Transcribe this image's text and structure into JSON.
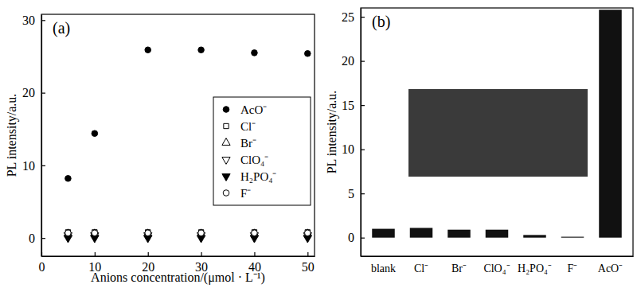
{
  "chart_data": [
    {
      "type": "scatter",
      "annotations": [
        "(a)"
      ],
      "x_label": "Anions concentration/(μmol · L⁻¹)",
      "y_label": "PL intensity/a.u.",
      "x": [
        5,
        10,
        20,
        30,
        40,
        50
      ],
      "series": [
        {
          "name": "AcO⁻",
          "color": "#000000",
          "marker": "circle",
          "values": [
            8.2,
            14.4,
            25.9,
            25.9,
            25.5,
            25.4
          ]
        },
        {
          "name": "Cl⁻",
          "color": "#000000",
          "marker": "square-open",
          "values": [
            0.8,
            0.8,
            0.8,
            0.8,
            0.8,
            0.8
          ]
        },
        {
          "name": "Br⁻",
          "color": "#000000",
          "marker": "triangle-open",
          "values": [
            0.6,
            0.6,
            0.6,
            0.6,
            0.6,
            0.6
          ]
        },
        {
          "name": "ClO₄⁻",
          "color": "#000000",
          "marker": "triangle-down-open",
          "values": [
            0.4,
            0.4,
            0.4,
            0.4,
            0.4,
            0.4
          ]
        },
        {
          "name": "H₂PO₄⁻",
          "color": "#000000",
          "marker": "triangle-down",
          "values": [
            0.0,
            0.0,
            0.0,
            0.0,
            0.0,
            0.0
          ]
        },
        {
          "name": "F⁻",
          "color": "#000000",
          "marker": "circle-open",
          "values": [
            0.7,
            0.7,
            0.7,
            0.7,
            0.7,
            0.7
          ]
        }
      ],
      "xlim": [
        0,
        51.3
      ],
      "xticks": [
        0,
        10,
        20,
        30,
        40,
        50
      ],
      "ylim": [
        -2.5,
        30.8
      ],
      "yticks": [
        0,
        10,
        20,
        30
      ],
      "legend": "right"
    },
    {
      "type": "bar",
      "annotations": [
        "(b)"
      ],
      "y_label": "PL intensity/a.u.",
      "categories": [
        "blank",
        "Cl⁻",
        "Br⁻",
        "ClO₄⁻",
        "H₂PO₄⁻",
        "F⁻",
        "AcO⁻"
      ],
      "values": [
        1.0,
        1.1,
        0.9,
        0.9,
        0.3,
        0.1,
        25.8
      ],
      "color": "#111111",
      "ylim": [
        -2.1,
        26.0
      ],
      "yticks": [
        0,
        5,
        10,
        15,
        20,
        25
      ]
    }
  ]
}
